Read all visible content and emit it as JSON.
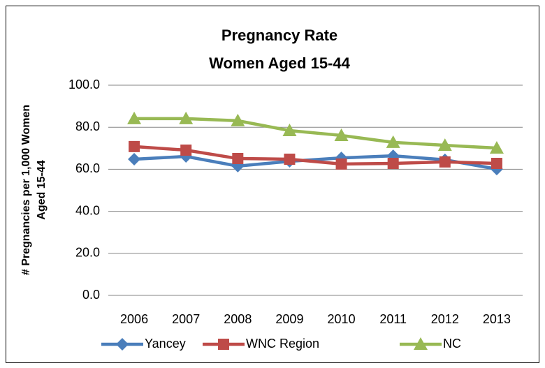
{
  "chart_data": {
    "type": "line",
    "title": [
      "Pregnancy Rate",
      "Women Aged 15-44"
    ],
    "ylabel": [
      "# Pregnancies per 1,000 Women",
      "Aged 15-44"
    ],
    "categories": [
      "2006",
      "2007",
      "2008",
      "2009",
      "2010",
      "2011",
      "2012",
      "2013"
    ],
    "series": [
      {
        "name": "Yancey",
        "color": "#4a7ebb",
        "marker": "diamond",
        "values": [
          64.8,
          66.1,
          61.5,
          63.8,
          65.4,
          66.4,
          64.5,
          60.1
        ]
      },
      {
        "name": "WNC Region",
        "color": "#be4b48",
        "marker": "square",
        "values": [
          70.8,
          69.1,
          65.1,
          64.8,
          62.5,
          62.8,
          63.5,
          62.8
        ]
      },
      {
        "name": "NC",
        "color": "#98b954",
        "marker": "triangle",
        "values": [
          84.1,
          84.1,
          83.1,
          78.4,
          76.1,
          72.8,
          71.4,
          70.1
        ]
      }
    ],
    "ylim": [
      0,
      100
    ],
    "yticks": [
      {
        "value": 0,
        "label": "0.0"
      },
      {
        "value": 20,
        "label": "20.0"
      },
      {
        "value": 40,
        "label": "40.0"
      },
      {
        "value": 60,
        "label": "60.0"
      },
      {
        "value": 80,
        "label": "80.0"
      },
      {
        "value": 100,
        "label": "100.0"
      }
    ],
    "grid": true,
    "legend": "bottom"
  }
}
